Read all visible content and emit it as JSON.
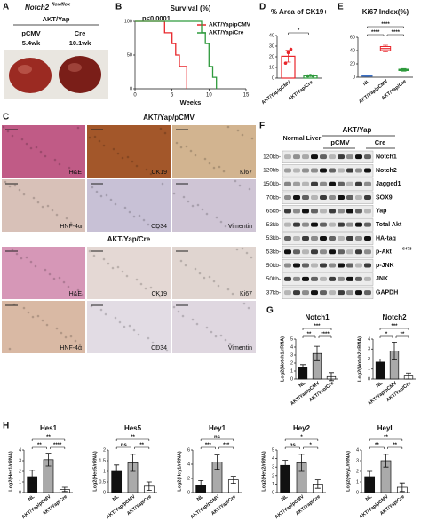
{
  "figure": {
    "panel_labels": [
      "A",
      "B",
      "C",
      "D",
      "E",
      "F",
      "G",
      "H"
    ],
    "panel_a": {
      "title": "Notch2",
      "title_sup": "flox/flox",
      "group": "AKT/Yap",
      "arms": [
        {
          "name": "pCMV",
          "time": "5.4wk"
        },
        {
          "name": "Cre",
          "time": "10.1wk"
        }
      ]
    },
    "panel_c": {
      "title_top": "AKT/Yap/pCMV",
      "title_bottom": "AKT/Yap/Cre",
      "stains": [
        "H&E",
        "CK19",
        "Ki67",
        "HNF-4α",
        "CD34",
        "Vimentin"
      ]
    },
    "panel_f": {
      "normal": "Normal Liver",
      "group": "AKT/Yap",
      "arms": [
        "pCMV",
        "Cre"
      ],
      "sizes": [
        "120kb-",
        "120kb-",
        "150kb-",
        "70kb-",
        "65kb-",
        "53kb-",
        "53kb-",
        "53kb-",
        "50kb-",
        "50kb-",
        "37kb-"
      ],
      "proteins": [
        "Notch1",
        "Notch2",
        "Jagged1",
        "SOX9",
        "Yap",
        "Total Akt",
        "HA-tag",
        "p-Akt",
        "p-JNK",
        "JNK",
        "GAPDH"
      ],
      "protein_sup": "S473"
    }
  },
  "chart_data": [
    {
      "type": "step",
      "title": "Survival (%)",
      "annotation": "p<0.0001",
      "x_label": "Weeks",
      "series": [
        {
          "name": "AKT/Yap/pCMV",
          "color": "#e8262b",
          "x": [
            0,
            4,
            4,
            5,
            5,
            5.5,
            5.5,
            6,
            6,
            7,
            7
          ],
          "values": [
            100,
            100,
            83,
            83,
            67,
            67,
            50,
            50,
            33,
            33,
            0
          ]
        },
        {
          "name": "AKT/Yap/Cre",
          "color": "#2e9a3c",
          "x": [
            0,
            9,
            9,
            9.5,
            9.5,
            10,
            10,
            10.5,
            10.5,
            11,
            11
          ],
          "values": [
            100,
            100,
            83,
            83,
            67,
            67,
            33,
            33,
            17,
            17,
            0
          ]
        }
      ],
      "xlim": [
        0,
        15
      ],
      "xticks": [
        0,
        5,
        10,
        15
      ],
      "ylim": [
        0,
        100
      ],
      "yticks": [
        0,
        50,
        100
      ]
    },
    {
      "type": "bar",
      "title": "% Area of CK19+",
      "categories": [
        "AKT/Yap/pCMV",
        "AKT/Yap/Cre"
      ],
      "values": [
        20.5,
        2.2
      ],
      "errors": [
        5.5,
        0.5
      ],
      "points": [
        [
          14,
          24,
          27
        ],
        [
          2,
          2.5,
          2
        ]
      ],
      "colors": [
        "#e8262b",
        "#2e9a3c"
      ],
      "outline": true,
      "ylim": [
        0,
        40
      ],
      "yticks": [
        0,
        10,
        20,
        30,
        40
      ],
      "annotations": [
        "*"
      ]
    },
    {
      "type": "box",
      "title": "Ki67 Index(%)",
      "categories": [
        "NL",
        "AKT/Yap/pCMV",
        "AKT/Yap/Cre"
      ],
      "min": [
        1,
        38,
        9
      ],
      "q1": [
        1.5,
        40,
        10
      ],
      "median": [
        2,
        43,
        11
      ],
      "q3": [
        2.5,
        46,
        12
      ],
      "max": [
        3,
        48,
        13
      ],
      "colors": [
        "#3a6fc4",
        "#e8262b",
        "#2e9a3c"
      ],
      "ylim": [
        0,
        60
      ],
      "yticks": [
        0,
        20,
        40,
        60
      ],
      "annotations": [
        "****",
        "****",
        "****"
      ]
    },
    {
      "type": "bar",
      "title": "Notch1",
      "y_label": "Log2(Notch1/rRNA)",
      "categories": [
        "NL",
        "AKT/Yap/pCMV",
        "AKT/Yap/Cre"
      ],
      "values": [
        1.5,
        3.2,
        0.3
      ],
      "errors": [
        0.3,
        0.9,
        0.5
      ],
      "colors": [
        "#111111",
        "#aaaaaa",
        "#ffffff"
      ],
      "ylim": [
        0,
        5
      ],
      "yticks": [
        0,
        1,
        2,
        3,
        4,
        5
      ],
      "annotations": [
        "**",
        "****",
        "***"
      ]
    },
    {
      "type": "bar",
      "title": "Notch2",
      "y_label": "Log2(Notch2/rRNA)",
      "categories": [
        "NL",
        "AKT/Yap/pCMV",
        "AKT/Yap/Cre"
      ],
      "values": [
        1.7,
        2.8,
        0.3
      ],
      "errors": [
        0.3,
        0.9,
        0.3
      ],
      "colors": [
        "#111111",
        "#aaaaaa",
        "#ffffff"
      ],
      "ylim": [
        0,
        4
      ],
      "yticks": [
        0,
        1,
        2,
        3,
        4
      ],
      "annotations": [
        "*",
        "**",
        "***"
      ]
    },
    {
      "type": "bar",
      "title": "Hes1",
      "y_label": "Log2(Hes1/rRNA)",
      "categories": [
        "NL",
        "AKT/Yap/pCMV",
        "AKT/Yap/Cre"
      ],
      "values": [
        1.5,
        3.1,
        0.3
      ],
      "errors": [
        0.6,
        0.6,
        0.2
      ],
      "colors": [
        "#111111",
        "#aaaaaa",
        "#ffffff"
      ],
      "ylim": [
        0,
        4
      ],
      "yticks": [
        0,
        1,
        2,
        3,
        4
      ],
      "annotations": [
        "**",
        "****",
        "**"
      ]
    },
    {
      "type": "bar",
      "title": "Hes5",
      "y_label": "Log2(Hes5/rRNA)",
      "categories": [
        "NL",
        "AKT/Yap/pCMV",
        "AKT/Yap/Cre"
      ],
      "values": [
        1.0,
        1.4,
        0.3
      ],
      "errors": [
        0.3,
        0.4,
        0.2
      ],
      "colors": [
        "#111111",
        "#aaaaaa",
        "#ffffff"
      ],
      "ylim": [
        0,
        2
      ],
      "yticks": [
        0,
        0.5,
        1,
        1.5,
        2
      ],
      "annotations": [
        "ns",
        "**",
        "**"
      ]
    },
    {
      "type": "bar",
      "title": "Hey1",
      "y_label": "Log2(Hey1/rRNA)",
      "categories": [
        "NL",
        "AKT/Yap/pCMV",
        "AKT/Yap/Cre"
      ],
      "values": [
        1.0,
        4.3,
        1.8
      ],
      "errors": [
        0.7,
        1.0,
        0.5
      ],
      "colors": [
        "#111111",
        "#aaaaaa",
        "#ffffff"
      ],
      "ylim": [
        0,
        6
      ],
      "yticks": [
        0,
        2,
        4,
        6
      ],
      "annotations": [
        "***",
        "***",
        "ns"
      ]
    },
    {
      "type": "bar",
      "title": "Hey2",
      "y_label": "Log2(Hey2/rRNA)",
      "categories": [
        "NL",
        "AKT/Yap/pCMV",
        "AKT/Yap/Cre"
      ],
      "values": [
        3.2,
        3.5,
        1.0
      ],
      "errors": [
        0.6,
        1.0,
        0.5
      ],
      "colors": [
        "#111111",
        "#aaaaaa",
        "#ffffff"
      ],
      "ylim": [
        0,
        5
      ],
      "yticks": [
        0,
        1,
        2,
        3,
        4,
        5
      ],
      "annotations": [
        "ns",
        "*",
        "*"
      ]
    },
    {
      "type": "bar",
      "title": "HeyL",
      "y_label": "Log2(HeyL/rRNA)",
      "categories": [
        "NL",
        "AKT/Yap/pCMV",
        "AKT/Yap/Cre"
      ],
      "values": [
        1.5,
        3.0,
        0.5
      ],
      "errors": [
        0.5,
        0.6,
        0.4
      ],
      "colors": [
        "#111111",
        "#aaaaaa",
        "#ffffff"
      ],
      "ylim": [
        0,
        4
      ],
      "yticks": [
        0,
        1,
        2,
        3,
        4
      ],
      "annotations": [
        "**",
        "**",
        "**"
      ]
    }
  ]
}
